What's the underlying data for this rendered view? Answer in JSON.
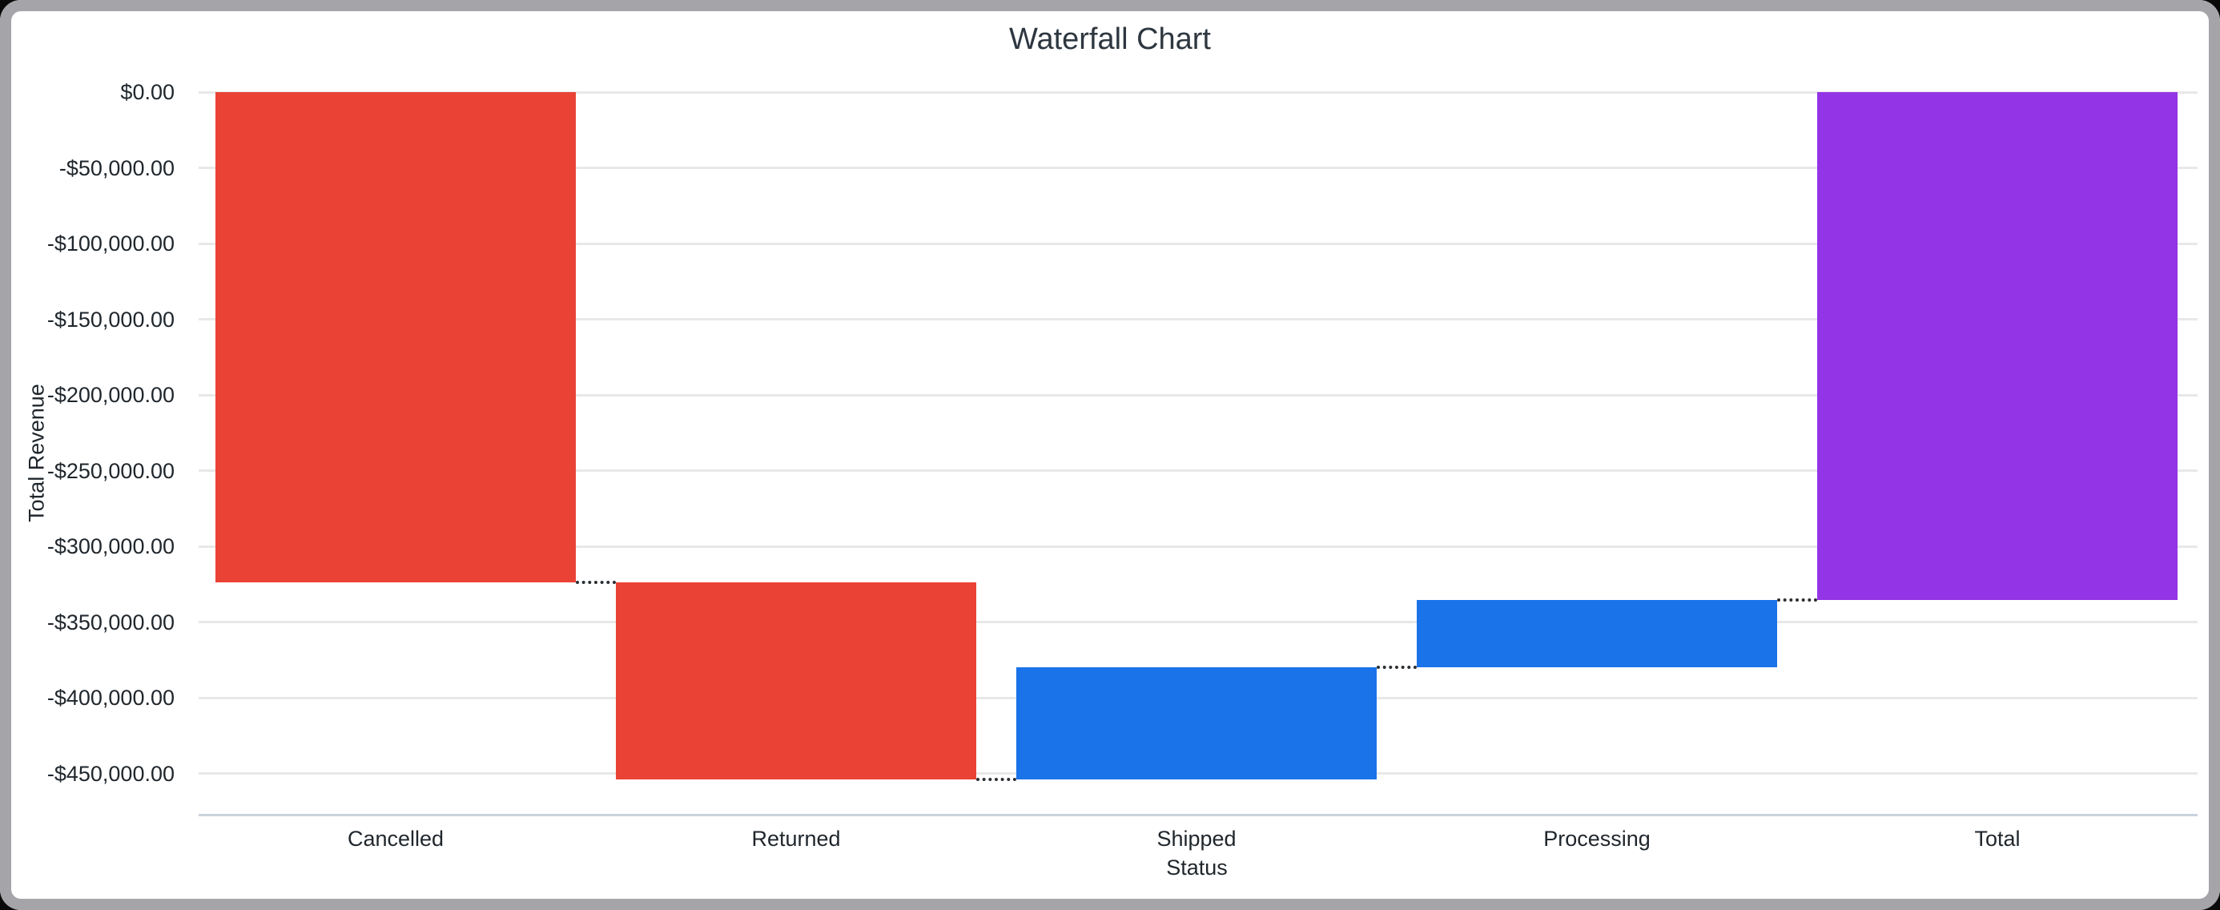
{
  "chart_data": {
    "type": "waterfall",
    "title": "Waterfall Chart",
    "xlabel": "Status",
    "ylabel": "Total Revenue",
    "categories": [
      "Cancelled",
      "Returned",
      "Shipped",
      "Processing",
      "Total"
    ],
    "bars": [
      {
        "label": "Cancelled",
        "value": -323400,
        "kind": "decrease",
        "start": 0,
        "end": -323400,
        "color": "#EA4335"
      },
      {
        "label": "Returned",
        "value": -130400,
        "kind": "decrease",
        "start": -323400,
        "end": -453800,
        "color": "#EA4335"
      },
      {
        "label": "Shipped",
        "value": 73900,
        "kind": "increase",
        "start": -453800,
        "end": -379900,
        "color": "#1A73E8"
      },
      {
        "label": "Processing",
        "value": 44400,
        "kind": "increase",
        "start": -379900,
        "end": -335500,
        "color": "#1A73E8"
      },
      {
        "label": "Total",
        "value": -335500,
        "kind": "total",
        "start": 0,
        "end": -335500,
        "color": "#9334E6"
      }
    ],
    "y_ticks": [
      {
        "label": "$0.00",
        "value": 0
      },
      {
        "label": "-$50,000.00",
        "value": -50000
      },
      {
        "label": "-$100,000.00",
        "value": -100000
      },
      {
        "label": "-$150,000.00",
        "value": -150000
      },
      {
        "label": "-$200,000.00",
        "value": -200000
      },
      {
        "label": "-$250,000.00",
        "value": -250000
      },
      {
        "label": "-$300,000.00",
        "value": -300000
      },
      {
        "label": "-$350,000.00",
        "value": -350000
      },
      {
        "label": "-$400,000.00",
        "value": -400000
      },
      {
        "label": "-$450,000.00",
        "value": -450000
      }
    ],
    "ylim": [
      -477000,
      0
    ],
    "grid": true,
    "legend": "none",
    "connector_style": "dotted",
    "colors": {
      "decrease": "#EA4335",
      "increase": "#1A73E8",
      "total": "#9334E6",
      "gridline": "#e8e8e8",
      "axis_line": "#c9d3de"
    }
  }
}
